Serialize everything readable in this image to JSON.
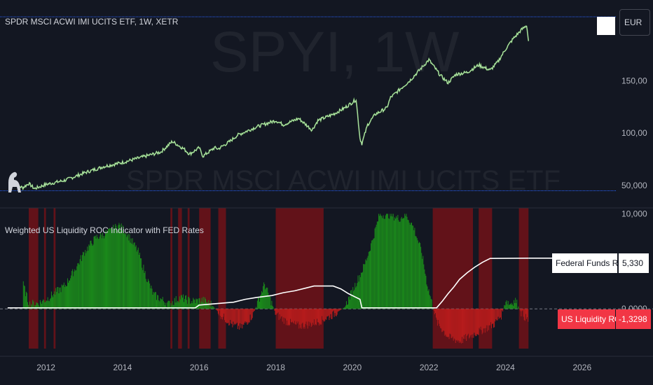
{
  "header": {
    "symbol_title": "SPDR MSCI ACWI IMI UCITS ETF, 1W, XETR",
    "currency": "EUR"
  },
  "watermark": {
    "ticker": "SPYI, 1W",
    "name": "SPDR MSCI ACWI IMI UCITS ETF"
  },
  "indicator": {
    "title": "Weighted US Liquidity ROC Indicator with FED Rates",
    "fed_label": "Federal Funds Rate",
    "fed_value": "5,330",
    "roc_label": "US Liquidity ROC",
    "roc_value": "-1,3298"
  },
  "colors": {
    "background": "#131722",
    "price_line": "#26a69a",
    "price_up": "#8bd17c",
    "roc_positive": "#1b8a1b",
    "roc_negative": "#b71c1c",
    "red_zone": "#6b1218",
    "fed_rate_line": "#ffffff",
    "level_line": "#2962ff"
  },
  "chart_data": [
    {
      "type": "line",
      "title": "SPDR MSCI ACWI IMI UCITS ETF, 1W, XETR",
      "x_ticks": [
        "2012",
        "2014",
        "2016",
        "2018",
        "2020",
        "2022",
        "2024",
        "2026"
      ],
      "xlim": [
        2010.8,
        2026.9
      ],
      "y_ticks": [
        "50,000",
        "100,00",
        "150,00"
      ],
      "ylim": [
        40,
        215
      ],
      "series": [
        {
          "x": [
            2011.15,
            2011.4,
            2011.55,
            2011.7,
            2012.0,
            2012.5,
            2013.0,
            2013.5,
            2014.0,
            2014.5,
            2015.0,
            2015.3,
            2015.6,
            2015.75,
            2016.0,
            2016.1,
            2016.4,
            2016.5,
            2016.8,
            2017.0,
            2017.5,
            2018.0,
            2018.2,
            2018.6,
            2018.95,
            2019.1,
            2019.5,
            2019.8,
            2020.1,
            2020.2,
            2020.25,
            2020.4,
            2020.6,
            2020.9,
            2021.0,
            2021.5,
            2021.9,
            2022.0,
            2022.3,
            2022.5,
            2022.7,
            2023.0,
            2023.3,
            2023.6,
            2023.8,
            2024.0,
            2024.2,
            2024.4,
            2024.55,
            2024.6
          ],
          "values": [
            51,
            48,
            52,
            47,
            51,
            55,
            62,
            68,
            72,
            77,
            82,
            92,
            85,
            80,
            86,
            78,
            86,
            85,
            92,
            98,
            106,
            112,
            108,
            114,
            103,
            112,
            118,
            124,
            132,
            95,
            90,
            108,
            118,
            124,
            134,
            150,
            166,
            170,
            155,
            148,
            156,
            158,
            165,
            160,
            168,
            180,
            190,
            198,
            203,
            188
          ]
        }
      ],
      "last_value": "",
      "level_lines": [
        211,
        45
      ]
    },
    {
      "type": "bar",
      "title": "Weighted US Liquidity ROC Indicator with FED Rates",
      "y_ticks": [
        "0,0000",
        "10,000"
      ],
      "ylim": [
        -4.7,
        10.4
      ],
      "xlim": [
        2010.8,
        2026.9
      ],
      "roc": {
        "x": [
          2011.4,
          2011.55,
          2011.8,
          2012.0,
          2012.5,
          2012.8,
          2013.0,
          2013.3,
          2013.6,
          2013.9,
          2014.1,
          2014.4,
          2014.6,
          2014.8,
          2015.0,
          2015.2,
          2015.5,
          2015.8,
          2016.1,
          2016.3,
          2016.6,
          2016.9,
          2017.1,
          2017.4,
          2017.7,
          2018.0,
          2018.3,
          2018.6,
          2018.9,
          2019.2,
          2019.5,
          2019.8,
          2019.95,
          2020.1,
          2020.3,
          2020.5,
          2020.7,
          2020.9,
          2021.0,
          2021.2,
          2021.4,
          2021.6,
          2021.8,
          2021.95,
          2022.2,
          2022.5,
          2022.8,
          2023.1,
          2023.4,
          2023.7,
          2023.9,
          2024.0,
          2024.1,
          2024.25,
          2024.4,
          2024.6
        ],
        "values": [
          2.5,
          0.5,
          0.6,
          1.0,
          2.5,
          4.5,
          6.0,
          7.5,
          8.0,
          8.8,
          8.0,
          6.0,
          3.5,
          1.5,
          1.0,
          0.5,
          1.2,
          0.8,
          0.9,
          0.5,
          -0.8,
          -1.8,
          -2.0,
          -0.6,
          2.6,
          -0.6,
          -1.4,
          -1.8,
          -1.6,
          -1.2,
          -0.6,
          0.2,
          1.5,
          2.8,
          4.5,
          7.0,
          9.9,
          9.9,
          9.9,
          9.5,
          9.9,
          8.5,
          6.0,
          2.5,
          -1.4,
          -3.0,
          -3.4,
          -2.8,
          -2.2,
          -1.6,
          -0.6,
          1.0,
          0.5,
          0.9,
          -0.4,
          -1.33
        ]
      },
      "red_zones": [
        [
          2011.55,
          2011.8
        ],
        [
          2011.95,
          2012.0
        ],
        [
          2012.2,
          2012.25
        ],
        [
          2015.25,
          2015.3
        ],
        [
          2015.45,
          2015.55
        ],
        [
          2015.7,
          2015.75
        ],
        [
          2016.0,
          2016.3
        ],
        [
          2016.5,
          2016.7
        ],
        [
          2018.0,
          2019.25
        ],
        [
          2022.1,
          2023.15
        ],
        [
          2023.3,
          2023.65
        ],
        [
          2024.35,
          2024.6
        ]
      ],
      "fed_rate": {
        "x": [
          2011.0,
          2015.9,
          2016.0,
          2016.9,
          2017.2,
          2017.5,
          2017.9,
          2018.2,
          2018.5,
          2018.8,
          2019.0,
          2019.5,
          2019.7,
          2019.9,
          2020.2,
          2020.25,
          2022.2,
          2022.35,
          2022.5,
          2022.65,
          2022.8,
          2023.0,
          2023.2,
          2023.4,
          2023.6,
          2024.6
        ],
        "values": [
          0.1,
          0.1,
          0.4,
          0.7,
          1.0,
          1.2,
          1.4,
          1.7,
          1.9,
          2.2,
          2.4,
          2.4,
          2.1,
          1.6,
          1.0,
          0.1,
          0.1,
          0.8,
          1.6,
          2.3,
          3.1,
          3.8,
          4.4,
          4.9,
          5.3,
          5.33
        ]
      },
      "legend": [
        "Federal Funds Rate",
        "US Liquidity ROC"
      ]
    }
  ]
}
